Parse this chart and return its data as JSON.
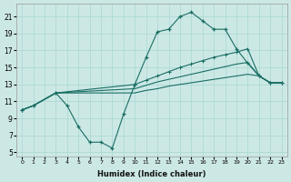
{
  "xlabel": "Humidex (Indice chaleur)",
  "background_color": "#cce8e5",
  "grid_color": "#a8d8d2",
  "line_color": "#1a6e64",
  "xlim": [
    -0.5,
    23.5
  ],
  "ylim": [
    4.5,
    22.5
  ],
  "yticks": [
    5,
    7,
    9,
    11,
    13,
    15,
    17,
    19,
    21
  ],
  "jagged_x": [
    0,
    1,
    3,
    4,
    5,
    6,
    7,
    8,
    9,
    10,
    11,
    12,
    13,
    14,
    15,
    16,
    17,
    18,
    19,
    20,
    21,
    22,
    23
  ],
  "jagged_y": [
    10.0,
    10.5,
    12.0,
    10.5,
    8.0,
    6.2,
    6.2,
    5.5,
    9.5,
    13.0,
    16.2,
    19.2,
    19.5,
    21.0,
    21.5,
    20.5,
    19.5,
    19.5,
    17.2,
    15.5,
    14.0,
    13.2,
    13.2
  ],
  "flat1_x": [
    0,
    1,
    3,
    10,
    11,
    12,
    13,
    14,
    15,
    16,
    17,
    18,
    19,
    20,
    21,
    22,
    23
  ],
  "flat1_y": [
    10.0,
    10.5,
    12.0,
    13.0,
    13.5,
    14.0,
    14.5,
    15.0,
    15.4,
    15.8,
    16.2,
    16.5,
    16.8,
    17.2,
    14.0,
    13.2,
    13.2
  ],
  "flat2_x": [
    0,
    1,
    3,
    10,
    11,
    12,
    13,
    14,
    15,
    16,
    17,
    18,
    19,
    20,
    21,
    22,
    23
  ],
  "flat2_y": [
    10.0,
    10.5,
    12.0,
    12.5,
    12.9,
    13.3,
    13.6,
    13.9,
    14.2,
    14.5,
    14.8,
    15.1,
    15.4,
    15.6,
    14.0,
    13.2,
    13.2
  ],
  "flat3_x": [
    0,
    1,
    3,
    10,
    11,
    12,
    13,
    14,
    15,
    16,
    17,
    18,
    19,
    20,
    21,
    22,
    23
  ],
  "flat3_y": [
    10.0,
    10.5,
    12.0,
    12.0,
    12.3,
    12.5,
    12.8,
    13.0,
    13.2,
    13.4,
    13.6,
    13.8,
    14.0,
    14.2,
    14.0,
    13.2,
    13.2
  ]
}
